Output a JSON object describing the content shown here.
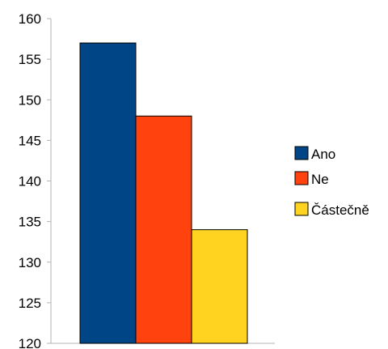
{
  "chart_data": {
    "type": "bar",
    "title": "",
    "xlabel": "",
    "ylabel": "",
    "ylim": [
      120,
      160
    ],
    "yticks": [
      120,
      125,
      130,
      135,
      140,
      145,
      150,
      155,
      160
    ],
    "grid": false,
    "legend_position": "right",
    "series": [
      {
        "name": "Ano",
        "value": 157,
        "color": "#004586"
      },
      {
        "name": "Ne",
        "value": 148,
        "color": "#ff420e"
      },
      {
        "name": "Částečně",
        "value": 134,
        "color": "#ffd320"
      }
    ]
  }
}
